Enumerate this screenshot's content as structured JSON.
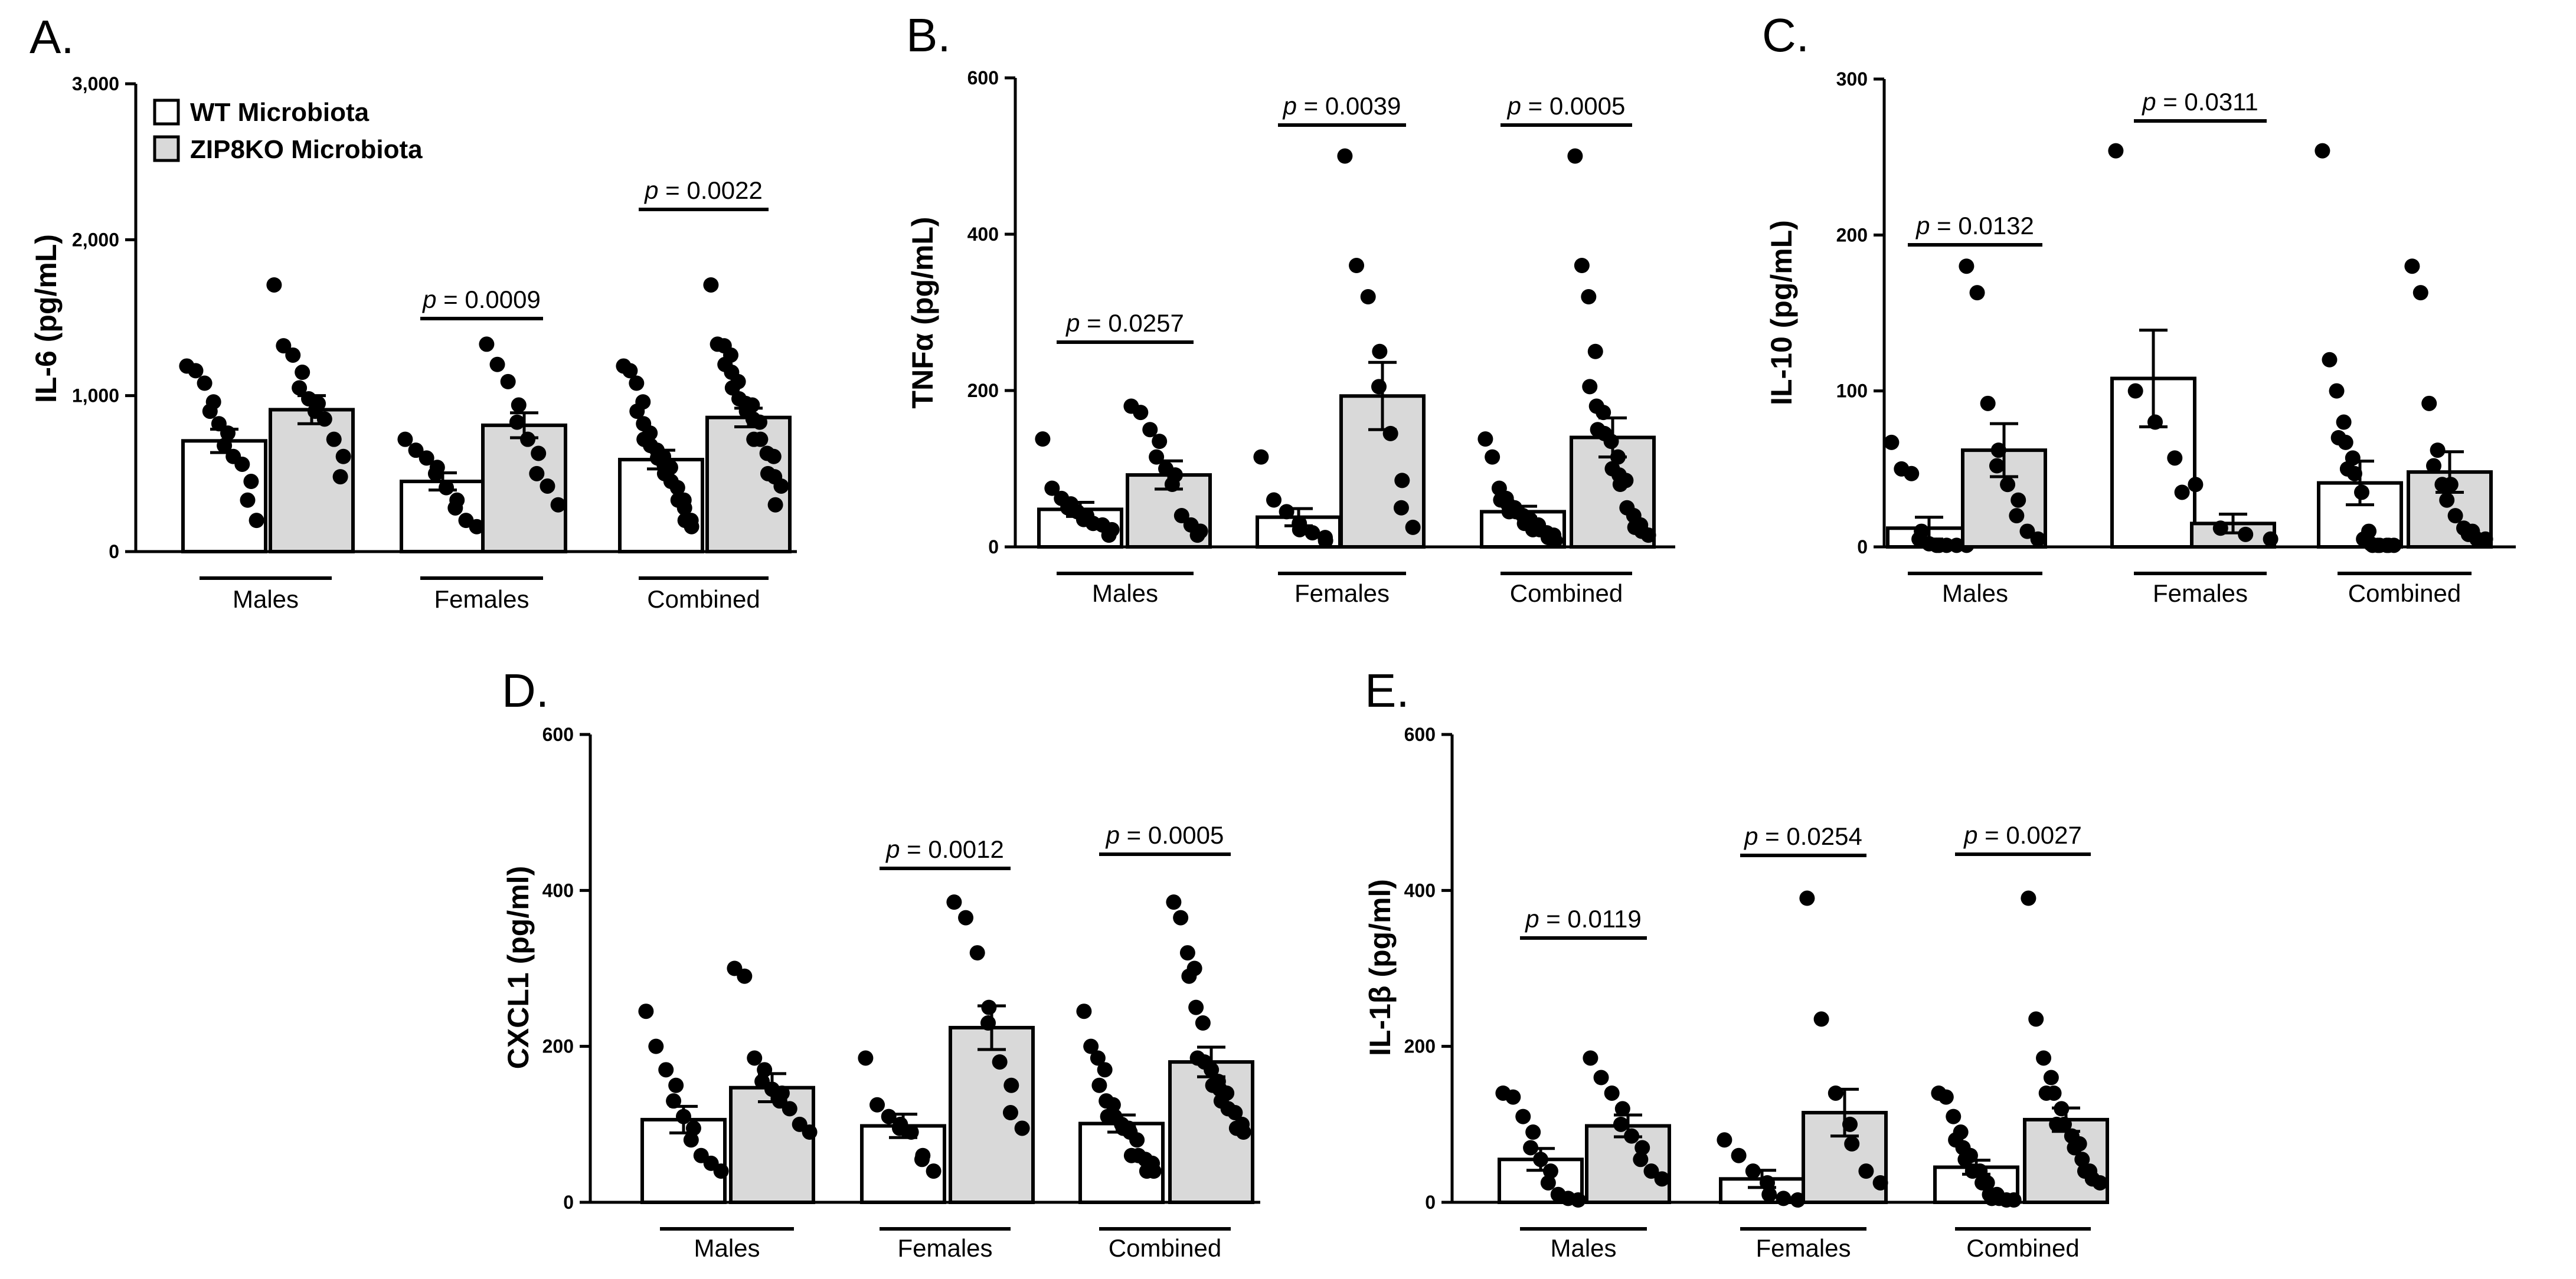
{
  "legend": {
    "items": [
      {
        "label": "WT Microbiota",
        "fill": "#ffffff"
      },
      {
        "label": "ZIP8KO Microbiota",
        "fill": "#d9d9d9"
      }
    ]
  },
  "chart_data": [
    {
      "panel": "A.",
      "type": "bar",
      "ylabel": "IL-6 (pg/mL)",
      "ylim": [
        0,
        3000
      ],
      "yticks": [
        "0",
        "1,000",
        "2,000",
        "3,000"
      ],
      "ytick_values": [
        0,
        1000,
        2000,
        3000
      ],
      "categories": [
        "Males",
        "Females",
        "Combined"
      ],
      "series": [
        {
          "name": "WT Microbiota",
          "means": [
            710,
            450,
            590
          ],
          "sem": [
            75,
            55,
            60
          ]
        },
        {
          "name": "ZIP8KO Microbiota",
          "means": [
            910,
            810,
            860
          ],
          "sem": [
            90,
            80,
            60
          ]
        }
      ],
      "points": [
        [
          [
            1190,
            1160,
            1080,
            960,
            900,
            820,
            760,
            680,
            610,
            560,
            450,
            330,
            200
          ],
          [
            1710,
            1320,
            1260,
            1150,
            1050,
            980,
            950,
            900,
            850,
            720,
            610,
            480
          ]
        ],
        [
          [
            720,
            650,
            600,
            540,
            500,
            410,
            330,
            280,
            200,
            160
          ],
          [
            1330,
            1200,
            1090,
            940,
            830,
            720,
            630,
            500,
            420,
            300
          ]
        ],
        [
          [
            1190,
            1160,
            1080,
            960,
            900,
            820,
            760,
            720,
            680,
            650,
            610,
            600,
            560,
            540,
            500,
            450,
            410,
            330,
            330,
            280,
            200,
            200,
            160
          ],
          [
            1710,
            1330,
            1320,
            1260,
            1200,
            1150,
            1090,
            1050,
            980,
            950,
            940,
            900,
            850,
            830,
            720,
            720,
            630,
            610,
            500,
            480,
            420,
            300
          ]
        ]
      ],
      "pvalues": [
        {
          "category": "Females",
          "text": "= 0.0009"
        },
        {
          "category": "Combined",
          "text": "= 0.0022"
        }
      ]
    },
    {
      "panel": "B.",
      "type": "bar",
      "ylabel": "TNFα (pg/mL)",
      "ylim": [
        0,
        600
      ],
      "yticks": [
        "0",
        "200",
        "400",
        "600"
      ],
      "ytick_values": [
        0,
        200,
        400,
        600
      ],
      "categories": [
        "Males",
        "Females",
        "Combined"
      ],
      "series": [
        {
          "name": "WT Microbiota",
          "means": [
            48,
            38,
            45
          ],
          "sem": [
            9,
            11,
            7
          ]
        },
        {
          "name": "ZIP8KO Microbiota",
          "means": [
            92,
            193,
            140
          ],
          "sem": [
            18,
            43,
            25
          ]
        }
      ],
      "points": [
        [
          [
            138,
            75,
            62,
            55,
            50,
            45,
            40,
            35,
            30,
            28,
            22,
            15
          ],
          [
            180,
            172,
            150,
            135,
            115,
            100,
            92,
            80,
            40,
            28,
            20,
            15
          ]
        ],
        [
          [
            115,
            60,
            45,
            30,
            22,
            18,
            12,
            8
          ],
          [
            500,
            360,
            320,
            250,
            205,
            145,
            85,
            50,
            25
          ]
        ],
        [
          [
            138,
            115,
            75,
            62,
            60,
            55,
            50,
            45,
            45,
            40,
            35,
            30,
            30,
            28,
            22,
            22,
            18,
            15,
            12,
            8
          ],
          [
            500,
            360,
            320,
            250,
            205,
            180,
            172,
            150,
            145,
            135,
            115,
            100,
            92,
            85,
            80,
            50,
            40,
            28,
            25,
            20,
            15
          ]
        ]
      ],
      "pvalues": [
        {
          "category": "Males",
          "text": "= 0.0257"
        },
        {
          "category": "Females",
          "text": "= 0.0039"
        },
        {
          "category": "Combined",
          "text": "= 0.0005"
        }
      ]
    },
    {
      "panel": "C.",
      "type": "bar",
      "ylabel": "IL-10 (pg/mL)",
      "ylim": [
        0,
        300
      ],
      "yticks": [
        "0",
        "100",
        "200",
        "300"
      ],
      "ytick_values": [
        0,
        100,
        200,
        300
      ],
      "categories": [
        "Males",
        "Females",
        "Combined"
      ],
      "series": [
        {
          "name": "WT Microbiota",
          "means": [
            12,
            108,
            41
          ],
          "sem": [
            7,
            31,
            14
          ]
        },
        {
          "name": "ZIP8KO Microbiota",
          "means": [
            62,
            15,
            48
          ],
          "sem": [
            17,
            6,
            13
          ]
        }
      ],
      "points": [
        [
          [
            67,
            50,
            47,
            10,
            5,
            2,
            1,
            1,
            1,
            1,
            1
          ],
          [
            180,
            163,
            92,
            62,
            52,
            40,
            30,
            20,
            10,
            5
          ]
        ],
        [
          [
            254,
            100,
            80,
            57,
            35
          ],
          [
            40,
            12,
            8,
            5
          ]
        ],
        [
          [
            254,
            120,
            100,
            80,
            70,
            67,
            57,
            50,
            47,
            35,
            10,
            5,
            2,
            1,
            1,
            1,
            1,
            1,
            1
          ],
          [
            180,
            163,
            92,
            62,
            52,
            40,
            40,
            30,
            20,
            12,
            10,
            8,
            5,
            5
          ]
        ]
      ],
      "pvalues": [
        {
          "category": "Males",
          "text": "= 0.0132"
        },
        {
          "category": "Females",
          "text": "= 0.0311"
        }
      ]
    },
    {
      "panel": "D.",
      "type": "bar",
      "ylabel": "CXCL1 (pg/ml)",
      "ylim": [
        0,
        600
      ],
      "yticks": [
        "0",
        "200",
        "400",
        "600"
      ],
      "ytick_values": [
        0,
        200,
        400,
        600
      ],
      "categories": [
        "Males",
        "Females",
        "Combined"
      ],
      "series": [
        {
          "name": "WT Microbiota",
          "means": [
            106,
            98,
            101
          ],
          "sem": [
            17,
            15,
            11
          ]
        },
        {
          "name": "ZIP8KO Microbiota",
          "means": [
            147,
            224,
            180
          ],
          "sem": [
            18,
            28,
            19
          ]
        }
      ],
      "points": [
        [
          [
            245,
            200,
            170,
            150,
            130,
            110,
            95,
            80,
            60,
            50,
            40
          ],
          [
            300,
            290,
            185,
            170,
            155,
            145,
            140,
            130,
            120,
            100,
            90
          ]
        ],
        [
          [
            185,
            125,
            110,
            100,
            95,
            90,
            60,
            55,
            40
          ],
          [
            385,
            365,
            320,
            250,
            230,
            180,
            150,
            115,
            95
          ]
        ],
        [
          [
            245,
            200,
            185,
            170,
            150,
            130,
            125,
            110,
            110,
            100,
            95,
            95,
            90,
            80,
            60,
            60,
            55,
            50,
            40,
            40
          ],
          [
            385,
            365,
            320,
            300,
            290,
            250,
            230,
            185,
            180,
            170,
            155,
            150,
            145,
            140,
            130,
            120,
            115,
            100,
            95,
            90
          ]
        ]
      ],
      "pvalues": [
        {
          "category": "Females",
          "text": "= 0.0012"
        },
        {
          "category": "Combined",
          "text": "= 0.0005"
        }
      ]
    },
    {
      "panel": "E.",
      "type": "bar",
      "ylabel": "IL-1β (pg/ml)",
      "ylim": [
        0,
        600
      ],
      "yticks": [
        "0",
        "200",
        "400",
        "600"
      ],
      "ytick_values": [
        0,
        200,
        400,
        600
      ],
      "categories": [
        "Males",
        "Females",
        "Combined"
      ],
      "series": [
        {
          "name": "WT Microbiota",
          "means": [
            55,
            30,
            45
          ],
          "sem": [
            14,
            11,
            9
          ]
        },
        {
          "name": "ZIP8KO Microbiota",
          "means": [
            98,
            115,
            106
          ],
          "sem": [
            14,
            30,
            15
          ]
        }
      ],
      "points": [
        [
          [
            140,
            135,
            110,
            90,
            70,
            55,
            40,
            25,
            10,
            5,
            3
          ],
          [
            185,
            160,
            140,
            120,
            100,
            85,
            70,
            55,
            40,
            30
          ]
        ],
        [
          [
            80,
            60,
            40,
            25,
            10,
            5,
            3
          ],
          [
            390,
            235,
            140,
            100,
            75,
            40,
            25
          ]
        ],
        [
          [
            140,
            135,
            110,
            90,
            80,
            70,
            60,
            55,
            40,
            40,
            25,
            25,
            10,
            10,
            5,
            5,
            3,
            3
          ],
          [
            390,
            235,
            185,
            160,
            140,
            140,
            120,
            100,
            100,
            85,
            75,
            70,
            55,
            40,
            40,
            30,
            25
          ]
        ]
      ],
      "pvalues": [
        {
          "category": "Males",
          "text": "= 0.0119"
        },
        {
          "category": "Females",
          "text": "= 0.0254"
        },
        {
          "category": "Combined",
          "text": "= 0.0027"
        }
      ]
    }
  ]
}
